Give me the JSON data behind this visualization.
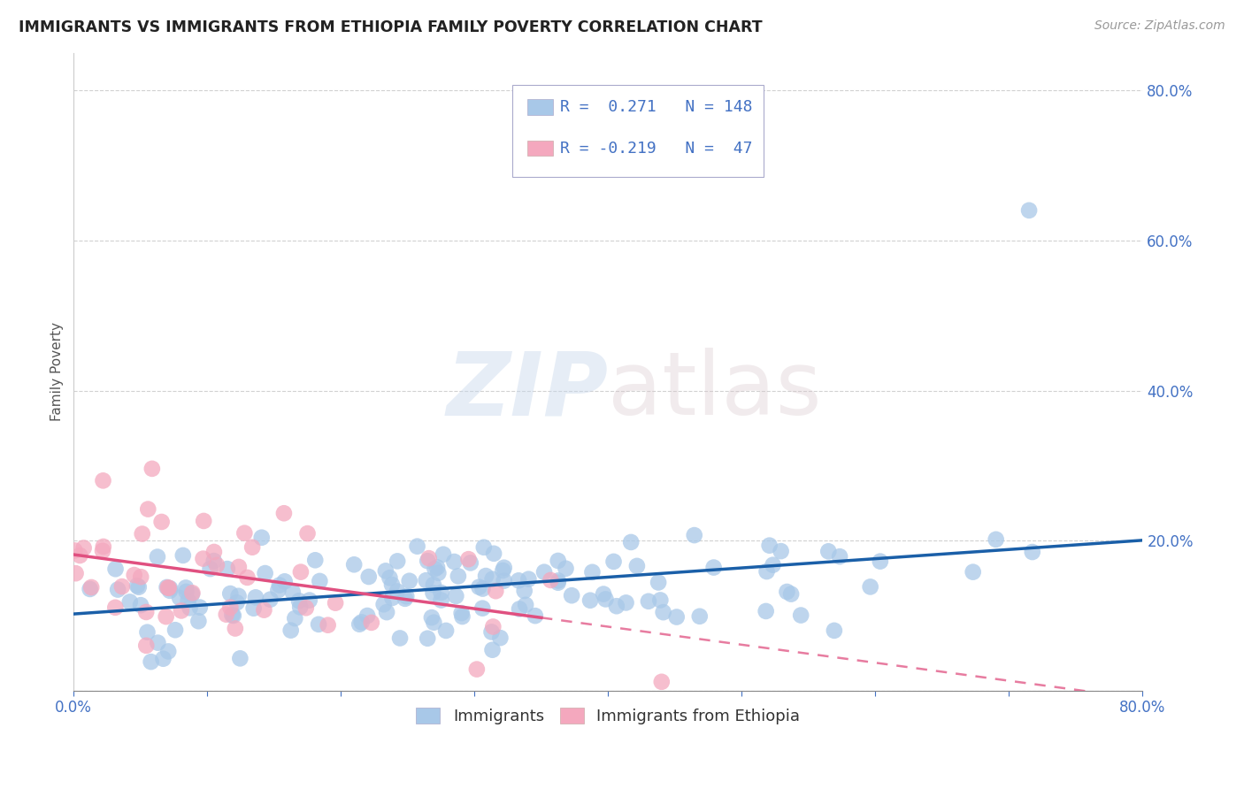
{
  "title": "IMMIGRANTS VS IMMIGRANTS FROM ETHIOPIA FAMILY POVERTY CORRELATION CHART",
  "source": "Source: ZipAtlas.com",
  "ylabel": "Family Poverty",
  "xlim": [
    0.0,
    0.8
  ],
  "ylim": [
    0.0,
    0.85
  ],
  "color_immigrants": "#a8c8e8",
  "color_ethiopia": "#f4a8be",
  "trendline_immigrants": "#1a5fa8",
  "trendline_ethiopia": "#e05080",
  "grid_color": "#cccccc",
  "background_color": "#ffffff",
  "seed_imm": 12,
  "seed_eth": 77
}
